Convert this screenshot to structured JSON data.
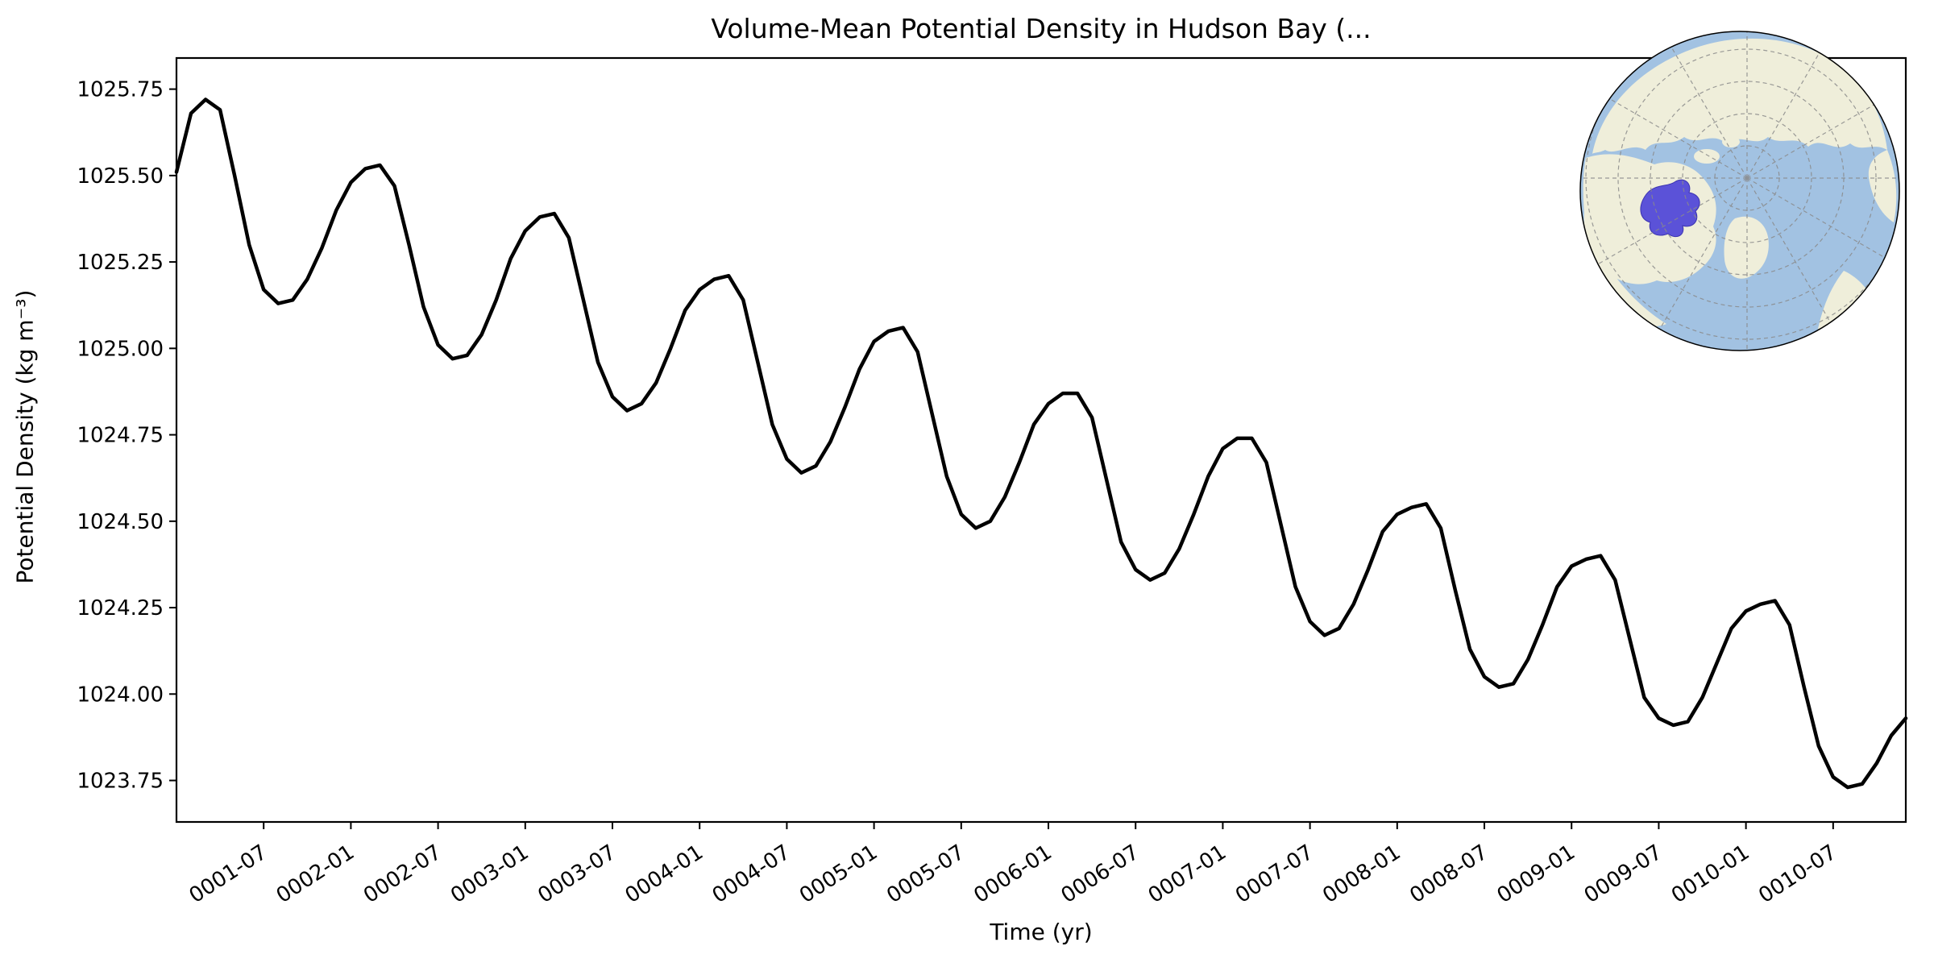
{
  "chart_data": {
    "type": "line",
    "title": "Volume-Mean Potential Density in Hudson Bay (...",
    "xlabel": "Time (yr)",
    "ylabel": "Potential Density (kg m⁻³)",
    "series_name": "volume-mean-potential-density",
    "line_color": "#000000",
    "grid": false,
    "legend_position": "none",
    "ylim": [
      1023.63,
      1025.84
    ],
    "xlim": [
      0,
      119
    ],
    "yticks": [
      1023.75,
      1024.0,
      1024.25,
      1024.5,
      1024.75,
      1025.0,
      1025.25,
      1025.5,
      1025.75
    ],
    "ytick_labels": [
      "1023.75",
      "1024.00",
      "1024.25",
      "1024.50",
      "1024.75",
      "1025.00",
      "1025.25",
      "1025.50",
      "1025.75"
    ],
    "xticks": [
      {
        "index": 6,
        "label": "0001-07"
      },
      {
        "index": 12,
        "label": "0002-01"
      },
      {
        "index": 18,
        "label": "0002-07"
      },
      {
        "index": 24,
        "label": "0003-01"
      },
      {
        "index": 30,
        "label": "0003-07"
      },
      {
        "index": 36,
        "label": "0004-01"
      },
      {
        "index": 42,
        "label": "0004-07"
      },
      {
        "index": 48,
        "label": "0005-01"
      },
      {
        "index": 54,
        "label": "0005-07"
      },
      {
        "index": 60,
        "label": "0006-01"
      },
      {
        "index": 66,
        "label": "0006-07"
      },
      {
        "index": 72,
        "label": "0007-01"
      },
      {
        "index": 78,
        "label": "0007-07"
      },
      {
        "index": 84,
        "label": "0008-01"
      },
      {
        "index": 90,
        "label": "0008-07"
      },
      {
        "index": 96,
        "label": "0009-01"
      },
      {
        "index": 102,
        "label": "0009-07"
      },
      {
        "index": 108,
        "label": "0010-01"
      },
      {
        "index": 114,
        "label": "0010-07"
      }
    ],
    "x": [
      "0001-01",
      "0001-02",
      "0001-03",
      "0001-04",
      "0001-05",
      "0001-06",
      "0001-07",
      "0001-08",
      "0001-09",
      "0001-10",
      "0001-11",
      "0001-12",
      "0002-01",
      "0002-02",
      "0002-03",
      "0002-04",
      "0002-05",
      "0002-06",
      "0002-07",
      "0002-08",
      "0002-09",
      "0002-10",
      "0002-11",
      "0002-12",
      "0003-01",
      "0003-02",
      "0003-03",
      "0003-04",
      "0003-05",
      "0003-06",
      "0003-07",
      "0003-08",
      "0003-09",
      "0003-10",
      "0003-11",
      "0003-12",
      "0004-01",
      "0004-02",
      "0004-03",
      "0004-04",
      "0004-05",
      "0004-06",
      "0004-07",
      "0004-08",
      "0004-09",
      "0004-10",
      "0004-11",
      "0004-12",
      "0005-01",
      "0005-02",
      "0005-03",
      "0005-04",
      "0005-05",
      "0005-06",
      "0005-07",
      "0005-08",
      "0005-09",
      "0005-10",
      "0005-11",
      "0005-12",
      "0006-01",
      "0006-02",
      "0006-03",
      "0006-04",
      "0006-05",
      "0006-06",
      "0006-07",
      "0006-08",
      "0006-09",
      "0006-10",
      "0006-11",
      "0006-12",
      "0007-01",
      "0007-02",
      "0007-03",
      "0007-04",
      "0007-05",
      "0007-06",
      "0007-07",
      "0007-08",
      "0007-09",
      "0007-10",
      "0007-11",
      "0007-12",
      "0008-01",
      "0008-02",
      "0008-03",
      "0008-04",
      "0008-05",
      "0008-06",
      "0008-07",
      "0008-08",
      "0008-09",
      "0008-10",
      "0008-11",
      "0008-12",
      "0009-01",
      "0009-02",
      "0009-03",
      "0009-04",
      "0009-05",
      "0009-06",
      "0009-07",
      "0009-08",
      "0009-09",
      "0009-10",
      "0009-11",
      "0009-12",
      "0010-01",
      "0010-02",
      "0010-03",
      "0010-04",
      "0010-05",
      "0010-06",
      "0010-07",
      "0010-08",
      "0010-09",
      "0010-10",
      "0010-11",
      "0010-12"
    ],
    "values": [
      1025.51,
      1025.68,
      1025.72,
      1025.69,
      1025.5,
      1025.3,
      1025.17,
      1025.13,
      1025.14,
      1025.2,
      1025.29,
      1025.4,
      1025.48,
      1025.52,
      1025.53,
      1025.47,
      1025.3,
      1025.12,
      1025.01,
      1024.97,
      1024.98,
      1025.04,
      1025.14,
      1025.26,
      1025.34,
      1025.38,
      1025.39,
      1025.32,
      1025.14,
      1024.96,
      1024.86,
      1024.82,
      1024.84,
      1024.9,
      1025.0,
      1025.11,
      1025.17,
      1025.2,
      1025.21,
      1025.14,
      1024.96,
      1024.78,
      1024.68,
      1024.64,
      1024.66,
      1024.73,
      1024.83,
      1024.94,
      1025.02,
      1025.05,
      1025.06,
      1024.99,
      1024.81,
      1024.63,
      1024.52,
      1024.48,
      1024.5,
      1024.57,
      1024.67,
      1024.78,
      1024.84,
      1024.87,
      1024.87,
      1024.8,
      1024.62,
      1024.44,
      1024.36,
      1024.33,
      1024.35,
      1024.42,
      1024.52,
      1024.63,
      1024.71,
      1024.74,
      1024.74,
      1024.67,
      1024.49,
      1024.31,
      1024.21,
      1024.17,
      1024.19,
      1024.26,
      1024.36,
      1024.47,
      1024.52,
      1024.54,
      1024.55,
      1024.48,
      1024.3,
      1024.13,
      1024.05,
      1024.02,
      1024.03,
      1024.1,
      1024.2,
      1024.31,
      1024.37,
      1024.39,
      1024.4,
      1024.33,
      1024.16,
      1023.99,
      1023.93,
      1023.91,
      1023.92,
      1023.99,
      1024.09,
      1024.19,
      1024.24,
      1024.26,
      1024.27,
      1024.2,
      1024.02,
      1023.85,
      1023.76,
      1023.73,
      1023.74,
      1023.8,
      1023.88,
      1023.93
    ],
    "inset_map": {
      "highlighted_region": "Hudson Bay",
      "ocean_color": "#a2c2e2",
      "land_color": "#efeeda",
      "highlight_color": "#5b52d8",
      "graticule_color": "#8a8a8a",
      "outline_color": "#000000"
    }
  }
}
